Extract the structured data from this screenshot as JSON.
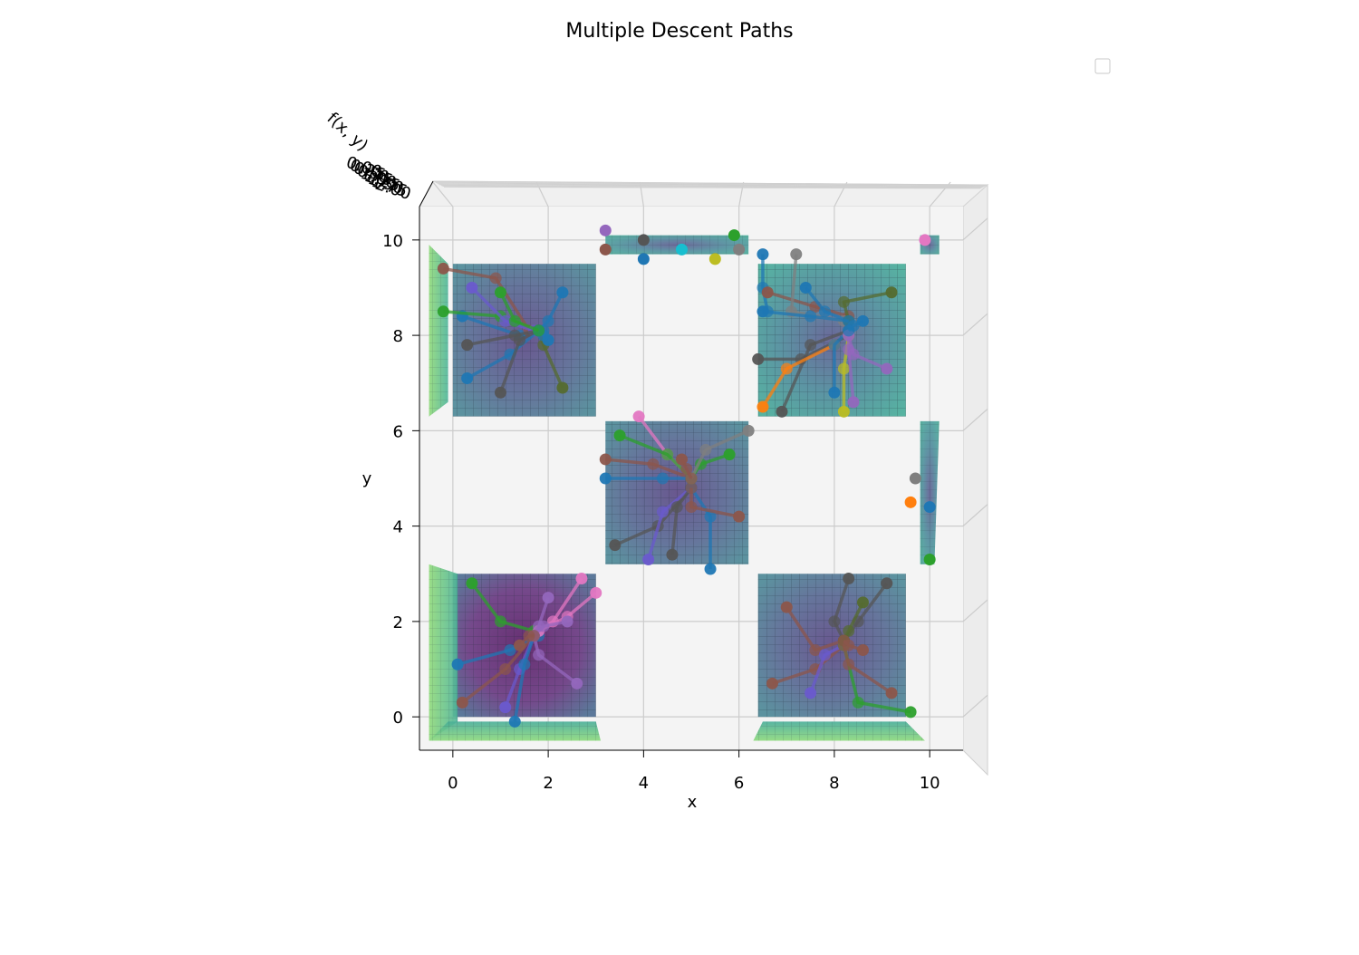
{
  "chart_data": {
    "type": "scatter",
    "title": "Multiple Descent Paths",
    "xlabel": "x",
    "ylabel": "y",
    "zlabel": "f(x, y)",
    "xlim": [
      -0.7,
      10.7
    ],
    "ylim": [
      -0.7,
      10.7
    ],
    "x_ticks": [
      "0",
      "2",
      "4",
      "6",
      "8",
      "10"
    ],
    "y_ticks": [
      "0",
      "2",
      "4",
      "6",
      "8",
      "10"
    ],
    "z_tick_labels": [
      "0.00",
      "0.25",
      "0.50",
      "0.75",
      "1.00",
      "1.25",
      "1.50",
      "1.75",
      "2.00"
    ],
    "grid": true,
    "legend": "top-right, empty",
    "colormap": "viridis",
    "colors": {
      "pane": "#f4f4f4",
      "grid": "#cccccc",
      "surface_low": "#5b2d7a",
      "surface_mid": "#3f6e92",
      "surface_high": "#4fb48a",
      "surface_edge": "#8fd87c"
    },
    "basins": [
      {
        "center": [
          1.5,
          1.5
        ],
        "x_range": [
          0.0,
          3.0
        ],
        "y_range": [
          0.0,
          3.0
        ],
        "depth": "deep"
      },
      {
        "center": [
          1.5,
          8.5
        ],
        "x_range": [
          0.0,
          3.0
        ],
        "y_range": [
          6.3,
          9.5
        ],
        "depth": "medium"
      },
      {
        "center": [
          5.0,
          5.0
        ],
        "x_range": [
          3.2,
          6.2
        ],
        "y_range": [
          3.2,
          6.2
        ],
        "depth": "medium"
      },
      {
        "center": [
          8.5,
          1.5
        ],
        "x_range": [
          6.4,
          9.5
        ],
        "y_range": [
          0.0,
          3.0
        ],
        "depth": "medium"
      },
      {
        "center": [
          8.5,
          8.5
        ],
        "x_range": [
          6.4,
          9.5
        ],
        "y_range": [
          6.3,
          9.5
        ],
        "depth": "shallow"
      }
    ],
    "series": [
      {
        "color": "#1f77b4",
        "points": [
          [
            0.2,
            8.4
          ],
          [
            1.4,
            8.0
          ],
          [
            1.9,
            8.1
          ]
        ]
      },
      {
        "color": "#2ca02c",
        "points": [
          [
            -0.2,
            8.5
          ],
          [
            1.0,
            8.4
          ],
          [
            1.8,
            8.1
          ]
        ]
      },
      {
        "color": "#8c564b",
        "points": [
          [
            -0.2,
            9.4
          ],
          [
            0.9,
            9.2
          ],
          [
            1.6,
            8.1
          ]
        ]
      },
      {
        "color": "#6a5acd",
        "points": [
          [
            0.4,
            9.0
          ],
          [
            1.1,
            8.3
          ],
          [
            1.7,
            8.1
          ]
        ]
      },
      {
        "color": "#555555",
        "points": [
          [
            0.3,
            7.8
          ],
          [
            1.3,
            8.0
          ],
          [
            1.8,
            8.1
          ]
        ]
      },
      {
        "color": "#1f77b4",
        "points": [
          [
            0.3,
            7.1
          ],
          [
            1.2,
            7.6
          ],
          [
            1.8,
            8.1
          ]
        ]
      },
      {
        "color": "#555555",
        "points": [
          [
            1.0,
            6.8
          ],
          [
            1.4,
            7.9
          ],
          [
            1.8,
            8.1
          ]
        ]
      },
      {
        "color": "#556b2f",
        "points": [
          [
            2.3,
            6.9
          ],
          [
            1.9,
            7.8
          ],
          [
            1.8,
            8.1
          ]
        ]
      },
      {
        "color": "#1f77b4",
        "points": [
          [
            2.3,
            8.9
          ],
          [
            2.0,
            8.3
          ],
          [
            1.8,
            8.1
          ]
        ]
      },
      {
        "color": "#1f77b4",
        "points": [
          [
            2.0,
            7.9
          ],
          [
            1.9,
            8.0
          ],
          [
            1.8,
            8.1
          ]
        ]
      },
      {
        "color": "#2ca02c",
        "points": [
          [
            1.0,
            8.9
          ],
          [
            1.3,
            8.3
          ],
          [
            1.8,
            8.1
          ]
        ]
      },
      {
        "color": "#1f77b4",
        "points": [
          [
            0.1,
            1.1
          ],
          [
            1.2,
            1.4
          ],
          [
            1.8,
            1.7
          ]
        ]
      },
      {
        "color": "#2ca02c",
        "points": [
          [
            0.4,
            2.8
          ],
          [
            1.0,
            2.0
          ],
          [
            1.7,
            1.8
          ]
        ]
      },
      {
        "color": "#8c564b",
        "points": [
          [
            0.2,
            0.3
          ],
          [
            1.1,
            1.0
          ],
          [
            1.7,
            1.7
          ]
        ]
      },
      {
        "color": "#e377c2",
        "points": [
          [
            2.7,
            2.9
          ],
          [
            2.1,
            2.0
          ],
          [
            1.8,
            1.8
          ]
        ]
      },
      {
        "color": "#e377c2",
        "points": [
          [
            3.0,
            2.6
          ],
          [
            2.4,
            2.1
          ],
          [
            1.8,
            1.8
          ]
        ]
      },
      {
        "color": "#6a5acd",
        "points": [
          [
            1.1,
            0.2
          ],
          [
            1.4,
            1.0
          ],
          [
            1.7,
            1.7
          ]
        ]
      },
      {
        "color": "#1f77b4",
        "points": [
          [
            1.3,
            -0.1
          ],
          [
            1.5,
            1.1
          ],
          [
            1.7,
            1.7
          ]
        ]
      },
      {
        "color": "#9467bd",
        "points": [
          [
            2.6,
            0.7
          ],
          [
            1.8,
            1.3
          ],
          [
            1.7,
            1.7
          ]
        ]
      },
      {
        "color": "#9467bd",
        "points": [
          [
            2.0,
            2.5
          ],
          [
            1.8,
            1.9
          ],
          [
            1.7,
            1.7
          ]
        ]
      },
      {
        "color": "#9467bd",
        "points": [
          [
            2.4,
            2.0
          ],
          [
            1.9,
            1.9
          ],
          [
            1.7,
            1.7
          ]
        ]
      },
      {
        "color": "#8c564b",
        "points": [
          [
            1.4,
            1.5
          ],
          [
            1.6,
            1.7
          ],
          [
            1.7,
            1.7
          ]
        ]
      },
      {
        "color": "#e377c2",
        "points": [
          [
            3.9,
            6.3
          ],
          [
            4.5,
            5.5
          ],
          [
            5.0,
            5.0
          ]
        ]
      },
      {
        "color": "#2ca02c",
        "points": [
          [
            3.5,
            5.9
          ],
          [
            4.5,
            5.5
          ],
          [
            5.0,
            5.0
          ]
        ]
      },
      {
        "color": "#8c564b",
        "points": [
          [
            3.2,
            5.4
          ],
          [
            4.2,
            5.3
          ],
          [
            5.0,
            5.0
          ]
        ]
      },
      {
        "color": "#1f77b4",
        "points": [
          [
            3.2,
            5.0
          ],
          [
            4.4,
            5.0
          ],
          [
            5.0,
            5.0
          ]
        ]
      },
      {
        "color": "#555555",
        "points": [
          [
            3.4,
            3.6
          ],
          [
            4.3,
            4.0
          ],
          [
            5.0,
            4.8
          ]
        ]
      },
      {
        "color": "#6a5acd",
        "points": [
          [
            4.1,
            3.3
          ],
          [
            4.4,
            4.3
          ],
          [
            5.0,
            4.8
          ]
        ]
      },
      {
        "color": "#555555",
        "points": [
          [
            4.6,
            3.4
          ],
          [
            4.7,
            4.4
          ],
          [
            5.0,
            4.8
          ]
        ]
      },
      {
        "color": "#1f77b4",
        "points": [
          [
            5.4,
            3.1
          ],
          [
            5.4,
            4.2
          ],
          [
            5.0,
            4.8
          ]
        ]
      },
      {
        "color": "#8c564b",
        "points": [
          [
            6.0,
            4.2
          ],
          [
            5.0,
            4.4
          ],
          [
            5.0,
            4.8
          ]
        ]
      },
      {
        "color": "#2ca02c",
        "points": [
          [
            5.8,
            5.5
          ],
          [
            5.2,
            5.3
          ],
          [
            5.0,
            5.0
          ]
        ]
      },
      {
        "color": "#7f7f7f",
        "points": [
          [
            6.2,
            6.0
          ],
          [
            5.3,
            5.6
          ],
          [
            5.0,
            5.0
          ]
        ]
      },
      {
        "color": "#8c564b",
        "points": [
          [
            4.8,
            5.4
          ],
          [
            4.9,
            5.2
          ],
          [
            5.0,
            5.0
          ]
        ]
      },
      {
        "color": "#1f77b4",
        "points": [
          [
            6.5,
            9.7
          ],
          [
            6.5,
            9.0
          ],
          [
            6.6,
            8.5
          ]
        ]
      },
      {
        "color": "#8c564b",
        "points": [
          [
            6.6,
            8.9
          ],
          [
            7.6,
            8.6
          ],
          [
            8.3,
            8.4
          ]
        ]
      },
      {
        "color": "#7f7f7f",
        "points": [
          [
            7.2,
            9.7
          ],
          [
            7.1,
            8.5
          ],
          [
            8.2,
            8.3
          ]
        ]
      },
      {
        "color": "#1f77b4",
        "points": [
          [
            7.4,
            9.0
          ],
          [
            7.8,
            8.5
          ],
          [
            8.3,
            8.3
          ]
        ]
      },
      {
        "color": "#556b2f",
        "points": [
          [
            9.2,
            8.9
          ],
          [
            8.2,
            8.7
          ],
          [
            8.3,
            8.3
          ]
        ]
      },
      {
        "color": "#1f77b4",
        "points": [
          [
            6.5,
            8.5
          ],
          [
            7.5,
            8.4
          ],
          [
            8.3,
            8.3
          ]
        ]
      },
      {
        "color": "#555555",
        "points": [
          [
            6.4,
            7.5
          ],
          [
            7.3,
            7.5
          ],
          [
            8.3,
            8.0
          ]
        ]
      },
      {
        "color": "#555555",
        "points": [
          [
            6.9,
            6.4
          ],
          [
            7.5,
            7.8
          ],
          [
            8.3,
            8.1
          ]
        ]
      },
      {
        "color": "#ff7f0e",
        "points": [
          [
            6.5,
            6.5
          ],
          [
            7.0,
            7.3
          ],
          [
            8.0,
            7.8
          ]
        ]
      },
      {
        "color": "#1f77b4",
        "points": [
          [
            8.0,
            6.8
          ],
          [
            8.0,
            7.8
          ],
          [
            8.3,
            8.1
          ]
        ]
      },
      {
        "color": "#bcbd22",
        "points": [
          [
            8.2,
            6.4
          ],
          [
            8.2,
            7.3
          ],
          [
            8.3,
            8.0
          ]
        ]
      },
      {
        "color": "#9467bd",
        "points": [
          [
            9.1,
            7.3
          ],
          [
            8.4,
            7.6
          ],
          [
            8.3,
            8.0
          ]
        ]
      },
      {
        "color": "#9467bd",
        "points": [
          [
            8.4,
            6.6
          ],
          [
            8.3,
            7.7
          ],
          [
            8.3,
            8.0
          ]
        ]
      },
      {
        "color": "#1f77b4",
        "points": [
          [
            8.6,
            8.3
          ],
          [
            8.4,
            8.2
          ],
          [
            8.3,
            8.1
          ]
        ]
      },
      {
        "color": "#555555",
        "points": [
          [
            8.3,
            2.9
          ],
          [
            8.0,
            2.0
          ],
          [
            8.2,
            1.6
          ]
        ]
      },
      {
        "color": "#555555",
        "points": [
          [
            9.1,
            2.8
          ],
          [
            8.5,
            2.0
          ],
          [
            8.2,
            1.6
          ]
        ]
      },
      {
        "color": "#8c564b",
        "points": [
          [
            7.0,
            2.3
          ],
          [
            7.6,
            1.4
          ],
          [
            8.2,
            1.6
          ]
        ]
      },
      {
        "color": "#8c564b",
        "points": [
          [
            6.7,
            0.7
          ],
          [
            7.6,
            1.0
          ],
          [
            8.2,
            1.5
          ]
        ]
      },
      {
        "color": "#6a5acd",
        "points": [
          [
            7.5,
            0.5
          ],
          [
            7.8,
            1.3
          ],
          [
            8.2,
            1.5
          ]
        ]
      },
      {
        "color": "#2ca02c",
        "points": [
          [
            9.6,
            0.1
          ],
          [
            8.5,
            0.3
          ],
          [
            8.2,
            1.5
          ]
        ]
      },
      {
        "color": "#8c564b",
        "points": [
          [
            9.2,
            0.5
          ],
          [
            8.3,
            1.1
          ],
          [
            8.2,
            1.5
          ]
        ]
      },
      {
        "color": "#556b2f",
        "points": [
          [
            8.6,
            2.4
          ],
          [
            8.3,
            1.8
          ],
          [
            8.2,
            1.6
          ]
        ]
      },
      {
        "color": "#8c564b",
        "points": [
          [
            8.6,
            1.4
          ],
          [
            8.3,
            1.5
          ],
          [
            8.2,
            1.6
          ]
        ]
      }
    ],
    "boundary_points": [
      {
        "color": "#9467bd",
        "x": 3.2,
        "y": 10.2
      },
      {
        "color": "#8c564b",
        "x": 3.2,
        "y": 9.8
      },
      {
        "color": "#555555",
        "x": 4.0,
        "y": 10.0
      },
      {
        "color": "#1f77b4",
        "x": 4.0,
        "y": 9.6
      },
      {
        "color": "#17becf",
        "x": 4.8,
        "y": 9.8
      },
      {
        "color": "#bcbd22",
        "x": 5.5,
        "y": 9.6
      },
      {
        "color": "#2ca02c",
        "x": 5.9,
        "y": 10.1
      },
      {
        "color": "#7f7f7f",
        "x": 6.0,
        "y": 9.8
      },
      {
        "color": "#e377c2",
        "x": 9.9,
        "y": 10.0
      },
      {
        "color": "#7f7f7f",
        "x": 9.7,
        "y": 5.0
      },
      {
        "color": "#ff7f0e",
        "x": 9.6,
        "y": 4.5
      },
      {
        "color": "#1f77b4",
        "x": 10.0,
        "y": 4.4
      },
      {
        "color": "#2ca02c",
        "x": 10.0,
        "y": 3.3
      }
    ]
  }
}
